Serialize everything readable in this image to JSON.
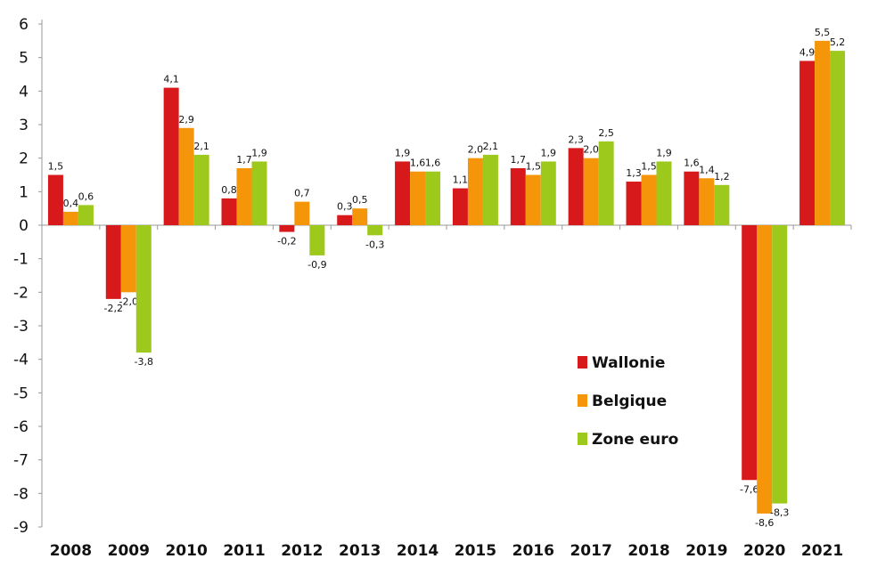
{
  "chart_data": {
    "type": "bar",
    "categories": [
      "2008",
      "2009",
      "2010",
      "2011",
      "2012",
      "2013",
      "2014",
      "2015",
      "2016",
      "2017",
      "2018",
      "2019",
      "2020",
      "2021"
    ],
    "series": [
      {
        "name": "Wallonie",
        "color": "#d7191c",
        "values": [
          1.5,
          -2.2,
          4.1,
          0.8,
          -0.2,
          0.3,
          1.9,
          1.1,
          1.7,
          2.3,
          1.3,
          1.6,
          -7.6,
          4.9
        ],
        "labels": [
          "1,5",
          "-2,2",
          "4,1",
          "0,8",
          "-0,2",
          "0,3",
          "1,9",
          "1,1",
          "1,7",
          "2,3",
          "1,3",
          "1,6",
          "-7,6",
          "4,9"
        ]
      },
      {
        "name": "Belgique",
        "color": "#f5960a",
        "values": [
          0.4,
          -2.0,
          2.9,
          1.7,
          0.7,
          0.5,
          1.6,
          2.0,
          1.5,
          2.0,
          1.5,
          1.4,
          -8.6,
          5.5
        ],
        "labels": [
          "0,4",
          "-2,0",
          "2,9",
          "1,7",
          "0,7",
          "0,5",
          "1,6",
          "2,0",
          "1,5",
          "2,0",
          "1,5",
          "1,4",
          "-8,6",
          "5,5"
        ]
      },
      {
        "name": "Zone euro",
        "color": "#9dc81c",
        "values": [
          0.6,
          -3.8,
          2.1,
          1.9,
          -0.9,
          -0.3,
          1.6,
          2.1,
          1.9,
          2.5,
          1.9,
          1.2,
          -8.3,
          5.2
        ],
        "labels": [
          "0,6",
          "-3,8",
          "2,1",
          "1,9",
          "-0,9",
          "-0,3",
          "1,6",
          "2,1",
          "1,9",
          "2,5",
          "1,9",
          "1,2",
          "-8,3",
          "5,2"
        ]
      }
    ],
    "y_ticks": [
      "6",
      "5",
      "4",
      "3",
      "2",
      "1",
      "0",
      "-1",
      "-2",
      "-3",
      "-4",
      "-5",
      "-6",
      "-7",
      "-8",
      "-9"
    ],
    "ylim": [
      -9,
      6
    ],
    "grid": false,
    "legend_position": "lower-right"
  }
}
